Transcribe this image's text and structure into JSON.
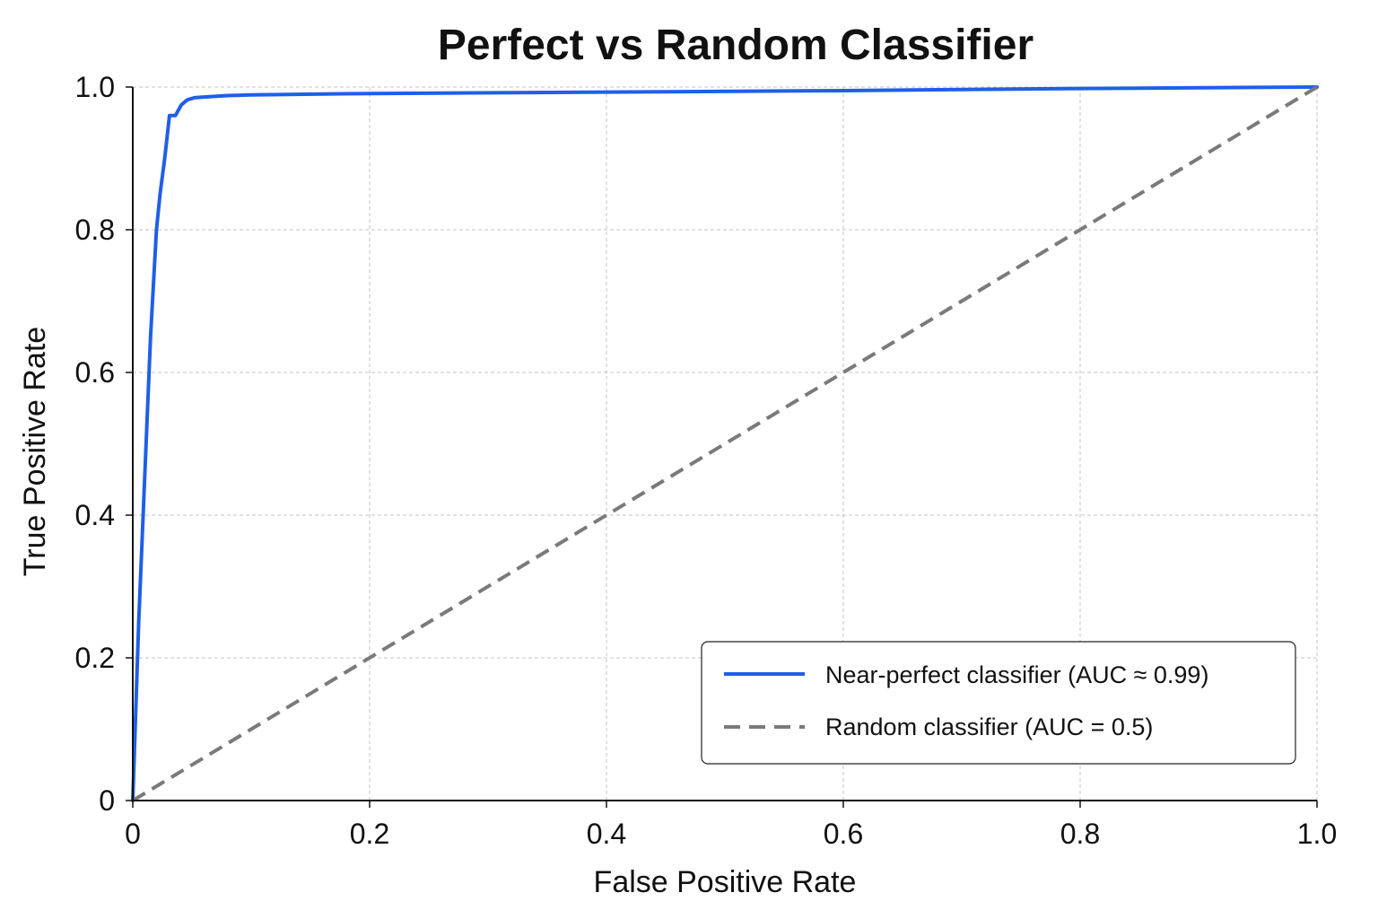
{
  "chart_data": {
    "type": "line",
    "title": "Perfect vs Random Classifier",
    "xlabel": "False Positive Rate",
    "ylabel": "True Positive Rate",
    "xlim": [
      0,
      1
    ],
    "ylim": [
      0,
      1
    ],
    "x_ticks": [
      0,
      0.2,
      0.4,
      0.6,
      0.8,
      1.0
    ],
    "x_tick_labels": [
      "0",
      "0.2",
      "0.4",
      "0.6",
      "0.8",
      "1.0"
    ],
    "y_ticks": [
      0,
      0.2,
      0.4,
      0.6,
      0.8,
      1.0
    ],
    "y_tick_labels": [
      "0",
      "0.2",
      "0.4",
      "0.6",
      "0.8",
      "1.0"
    ],
    "grid": true,
    "legend_position": "bottom-right",
    "series": [
      {
        "name": "Near-perfect classifier (AUC ≈ 0.99)",
        "color": "#1f5fe8",
        "line_style": "solid",
        "x": [
          0,
          0.005,
          0.01,
          0.015,
          0.02,
          0.023,
          0.027,
          0.031,
          0.036,
          0.041,
          0.046,
          0.052,
          0.06,
          0.08,
          0.1,
          0.2,
          0.4,
          0.6,
          0.8,
          1.0
        ],
        "y": [
          0,
          0.25,
          0.45,
          0.65,
          0.8,
          0.85,
          0.9,
          0.96,
          0.96,
          0.975,
          0.982,
          0.985,
          0.986,
          0.988,
          0.989,
          0.991,
          0.993,
          0.995,
          0.998,
          1.0
        ]
      },
      {
        "name": "Random classifier (AUC = 0.5)",
        "color": "#7a7a7a",
        "line_style": "dashed",
        "x": [
          0,
          1
        ],
        "y": [
          0,
          1
        ]
      }
    ]
  }
}
